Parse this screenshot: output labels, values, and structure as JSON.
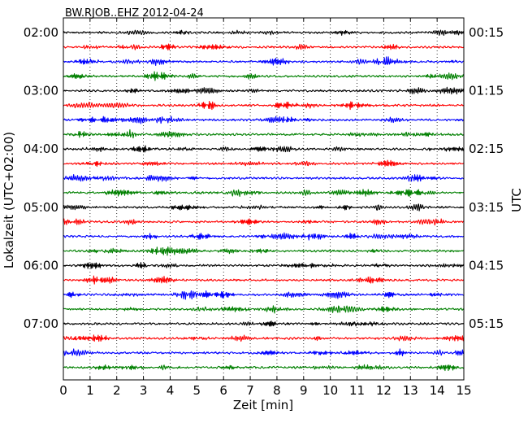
{
  "chart_data": {
    "type": "line",
    "title": "BW.RJOB..EHZ 2012-04-24",
    "xlabel": "Zeit  [min]",
    "ylabel_left": "Lokalzeit (UTC+02:00)",
    "ylabel_right": "UTC",
    "xlim": [
      0,
      15
    ],
    "x_ticks": [
      "0",
      "1",
      "2",
      "3",
      "4",
      "5",
      "6",
      "7",
      "8",
      "9",
      "10",
      "11",
      "12",
      "13",
      "14",
      "15"
    ],
    "x_grid": "dotted vertical lines at each minute",
    "left_tick_labels": [
      "02:00",
      "03:00",
      "04:00",
      "05:00",
      "06:00",
      "07:00"
    ],
    "right_tick_labels": [
      "00:15",
      "01:15",
      "02:15",
      "03:15",
      "04:15",
      "05:15"
    ],
    "trace_colors": [
      "#000000",
      "#ff0000",
      "#0000ff",
      "#008000"
    ],
    "trace_count": 24,
    "trace_minutes": 15
  }
}
